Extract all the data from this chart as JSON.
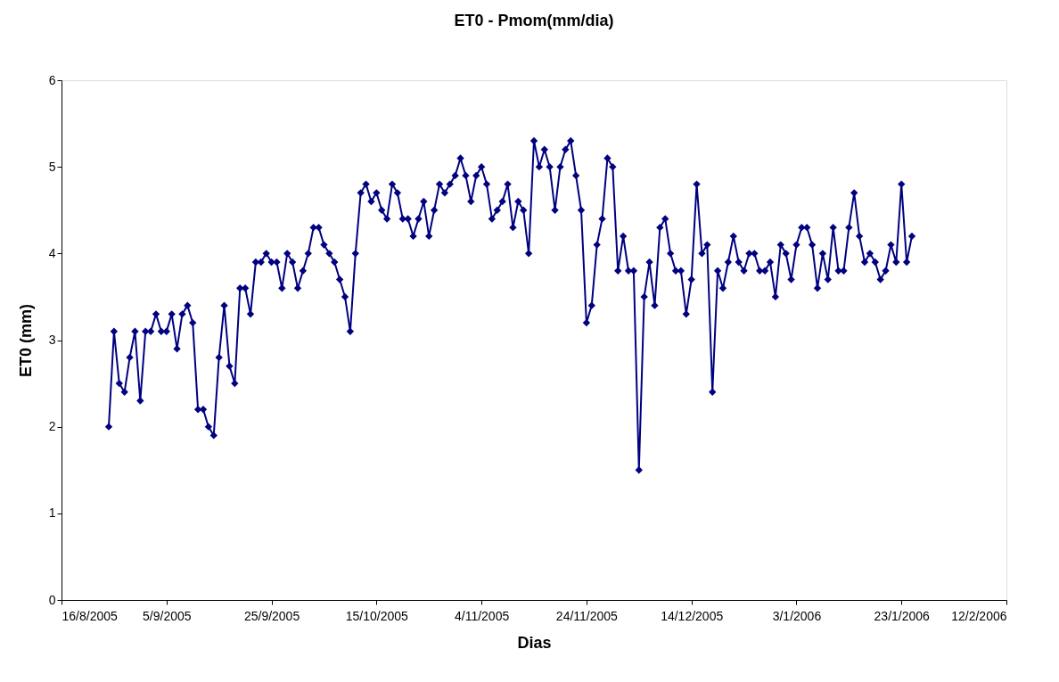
{
  "chart_data": {
    "type": "line",
    "title": "ET0 - Pmom(mm/dia)",
    "xlabel": "Dias",
    "ylabel": "ET0 (mm)",
    "x": [
      "2005-08-25",
      "2005-08-26",
      "2005-08-27",
      "2005-08-28",
      "2005-08-29",
      "2005-08-30",
      "2005-08-31",
      "2005-09-01",
      "2005-09-02",
      "2005-09-03",
      "2005-09-04",
      "2005-09-05",
      "2005-09-06",
      "2005-09-07",
      "2005-09-08",
      "2005-09-09",
      "2005-09-10",
      "2005-09-11",
      "2005-09-12",
      "2005-09-13",
      "2005-09-14",
      "2005-09-15",
      "2005-09-16",
      "2005-09-17",
      "2005-09-18",
      "2005-09-19",
      "2005-09-20",
      "2005-09-21",
      "2005-09-22",
      "2005-09-23",
      "2005-09-24",
      "2005-09-25",
      "2005-09-26",
      "2005-09-27",
      "2005-09-28",
      "2005-09-29",
      "2005-09-30",
      "2005-10-01",
      "2005-10-02",
      "2005-10-03",
      "2005-10-04",
      "2005-10-05",
      "2005-10-06",
      "2005-10-07",
      "2005-10-08",
      "2005-10-09",
      "2005-10-10",
      "2005-10-11",
      "2005-10-12",
      "2005-10-13",
      "2005-10-14",
      "2005-10-15",
      "2005-10-16",
      "2005-10-17",
      "2005-10-18",
      "2005-10-19",
      "2005-10-20",
      "2005-10-21",
      "2005-10-22",
      "2005-10-23",
      "2005-10-24",
      "2005-10-25",
      "2005-10-26",
      "2005-10-27",
      "2005-10-28",
      "2005-10-29",
      "2005-10-30",
      "2005-10-31",
      "2005-11-01",
      "2005-11-02",
      "2005-11-03",
      "2005-11-04",
      "2005-11-05",
      "2005-11-06",
      "2005-11-07",
      "2005-11-08",
      "2005-11-09",
      "2005-11-10",
      "2005-11-11",
      "2005-11-12",
      "2005-11-13",
      "2005-11-14",
      "2005-11-15",
      "2005-11-16",
      "2005-11-17",
      "2005-11-18",
      "2005-11-19",
      "2005-11-20",
      "2005-11-21",
      "2005-11-22",
      "2005-11-23",
      "2005-11-24",
      "2005-11-25",
      "2005-11-26",
      "2005-11-27",
      "2005-11-28",
      "2005-11-29",
      "2005-11-30",
      "2005-12-01",
      "2005-12-02",
      "2005-12-03",
      "2005-12-04",
      "2005-12-05",
      "2005-12-06",
      "2005-12-07",
      "2005-12-08",
      "2005-12-09",
      "2005-12-10",
      "2005-12-11",
      "2005-12-12",
      "2005-12-13",
      "2005-12-14",
      "2005-12-15",
      "2005-12-16",
      "2005-12-17",
      "2005-12-18",
      "2005-12-19",
      "2005-12-20",
      "2005-12-21",
      "2005-12-22",
      "2005-12-23",
      "2005-12-24",
      "2005-12-25",
      "2005-12-26",
      "2005-12-27",
      "2005-12-28",
      "2005-12-29",
      "2005-12-30",
      "2005-12-31",
      "2006-01-01",
      "2006-01-02",
      "2006-01-03",
      "2006-01-04",
      "2006-01-05",
      "2006-01-06",
      "2006-01-07",
      "2006-01-08",
      "2006-01-09",
      "2006-01-10",
      "2006-01-11",
      "2006-01-12",
      "2006-01-13",
      "2006-01-14",
      "2006-01-15",
      "2006-01-16",
      "2006-01-17",
      "2006-01-18",
      "2006-01-19",
      "2006-01-20",
      "2006-01-21",
      "2006-01-22",
      "2006-01-23",
      "2006-01-24",
      "2006-01-25"
    ],
    "series": [
      {
        "color": "#000080",
        "values": [
          2.0,
          3.1,
          2.5,
          2.4,
          2.8,
          3.1,
          2.3,
          3.1,
          3.1,
          3.3,
          3.1,
          3.1,
          3.3,
          2.9,
          3.3,
          3.4,
          3.2,
          2.2,
          2.2,
          2.0,
          1.9,
          2.8,
          3.4,
          2.7,
          2.5,
          3.6,
          3.6,
          3.3,
          3.9,
          3.9,
          4.0,
          3.9,
          3.9,
          3.6,
          4.0,
          3.9,
          3.6,
          3.8,
          4.0,
          4.3,
          4.3,
          4.1,
          4.0,
          3.9,
          3.7,
          3.5,
          3.1,
          4.0,
          4.7,
          4.8,
          4.6,
          4.7,
          4.5,
          4.4,
          4.8,
          4.7,
          4.4,
          4.4,
          4.2,
          4.4,
          4.6,
          4.2,
          4.5,
          4.8,
          4.7,
          4.8,
          4.9,
          5.1,
          4.9,
          4.6,
          4.9,
          5.0,
          4.8,
          4.4,
          4.5,
          4.6,
          4.8,
          4.3,
          4.6,
          4.5,
          4.0,
          5.3,
          5.0,
          5.2,
          5.0,
          4.5,
          5.0,
          5.2,
          5.3,
          4.9,
          4.5,
          3.2,
          3.4,
          4.1,
          4.4,
          5.1,
          5.0,
          3.8,
          4.2,
          3.8,
          3.8,
          1.5,
          3.5,
          3.9,
          3.4,
          4.3,
          4.4,
          4.0,
          3.8,
          3.8,
          3.3,
          3.7,
          4.8,
          4.0,
          4.1,
          2.4,
          3.8,
          3.6,
          3.9,
          4.2,
          3.9,
          3.8,
          4.0,
          4.0,
          3.8,
          3.8,
          3.9,
          3.5,
          4.1,
          4.0,
          3.7,
          4.1,
          4.3,
          4.3,
          4.1,
          3.6,
          4.0,
          3.7,
          4.3,
          3.8,
          3.8,
          4.3,
          4.7,
          4.2,
          3.9,
          4.0,
          3.9,
          3.7,
          3.8,
          4.1,
          3.9,
          4.8,
          3.9,
          4.2
        ]
      }
    ],
    "xlim": [
      "2005-08-16",
      "2006-02-12"
    ],
    "xticks": [
      {
        "value": "2005-08-16",
        "label": "16/8/2005"
      },
      {
        "value": "2005-09-05",
        "label": "5/9/2005"
      },
      {
        "value": "2005-09-25",
        "label": "25/9/2005"
      },
      {
        "value": "2005-10-15",
        "label": "15/10/2005"
      },
      {
        "value": "2005-11-04",
        "label": "4/11/2005"
      },
      {
        "value": "2005-11-24",
        "label": "24/11/2005"
      },
      {
        "value": "2005-12-14",
        "label": "14/12/2005"
      },
      {
        "value": "2006-01-03",
        "label": "3/1/2006"
      },
      {
        "value": "2006-01-23",
        "label": "23/1/2006"
      },
      {
        "value": "2006-02-12",
        "label": "12/2/2006"
      }
    ],
    "ylim": [
      0,
      6
    ],
    "yticks": [
      0,
      1,
      2,
      3,
      4,
      5,
      6
    ],
    "marker": "diamond",
    "line_style": "solid",
    "grid": false,
    "legend": false
  }
}
